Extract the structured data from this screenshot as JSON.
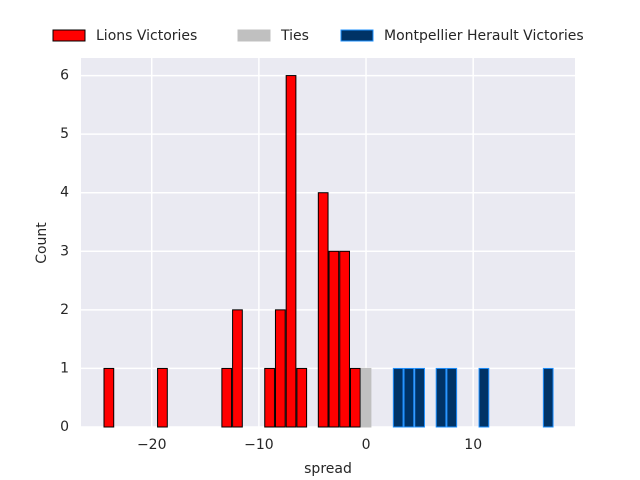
{
  "chart_data": {
    "type": "histogram",
    "x_label": "spread",
    "y_label": "Count",
    "bins": [
      -24.5,
      -23.5,
      -22.5,
      -21.5,
      -20.5,
      -19.5,
      -18.5,
      -17.5,
      -16.5,
      -15.5,
      -14.5,
      -13.5,
      -12.5,
      -11.5,
      -10.5,
      -9.5,
      -8.5,
      -7.5,
      -6.5,
      -5.5,
      -4.5,
      -3.5,
      -2.5,
      -1.5,
      -0.5,
      0.5,
      1.5,
      2.5,
      3.5,
      4.5,
      5.5,
      6.5,
      7.5,
      8.5,
      9.5,
      10.5,
      11.5,
      12.5,
      13.5,
      14.5,
      15.5,
      16.5,
      17.5
    ],
    "series": [
      {
        "name": "Lions Victories",
        "color": "#ff0000",
        "edgecolor": "#000000",
        "values": [
          1,
          0,
          0,
          0,
          0,
          1,
          0,
          0,
          0,
          0,
          0,
          1,
          2,
          0,
          0,
          1,
          2,
          6,
          1,
          0,
          4,
          3,
          3,
          1,
          0,
          0,
          0,
          0,
          0,
          0,
          0,
          0,
          0,
          0,
          0,
          0,
          0,
          0,
          0,
          0,
          0,
          0
        ]
      },
      {
        "name": "Ties",
        "color": "#c0c0c0",
        "edgecolor": "#c0c0c0",
        "values": [
          0,
          0,
          0,
          0,
          0,
          0,
          0,
          0,
          0,
          0,
          0,
          0,
          0,
          0,
          0,
          0,
          0,
          0,
          0,
          0,
          0,
          0,
          0,
          0,
          1,
          0,
          0,
          0,
          0,
          0,
          0,
          0,
          0,
          0,
          0,
          0,
          0,
          0,
          0,
          0,
          0,
          0
        ]
      },
      {
        "name": "Montpellier Herault Victories",
        "color": "#003366",
        "edgecolor": "#1e90ff",
        "values": [
          0,
          0,
          0,
          0,
          0,
          0,
          0,
          0,
          0,
          0,
          0,
          0,
          0,
          0,
          0,
          0,
          0,
          0,
          0,
          0,
          0,
          0,
          0,
          0,
          0,
          0,
          0,
          1,
          1,
          1,
          0,
          1,
          1,
          0,
          0,
          1,
          0,
          0,
          0,
          0,
          0,
          1
        ]
      }
    ],
    "xlim": [
      -26.6,
      19.5
    ],
    "ylim": [
      0,
      6.3
    ],
    "xticks": [
      {
        "value": -20,
        "label": "−20"
      },
      {
        "value": -10,
        "label": "−10"
      },
      0,
      10
    ],
    "yticks": [
      0,
      1,
      2,
      3,
      4,
      5,
      6
    ],
    "grid": true,
    "legend": "top"
  }
}
